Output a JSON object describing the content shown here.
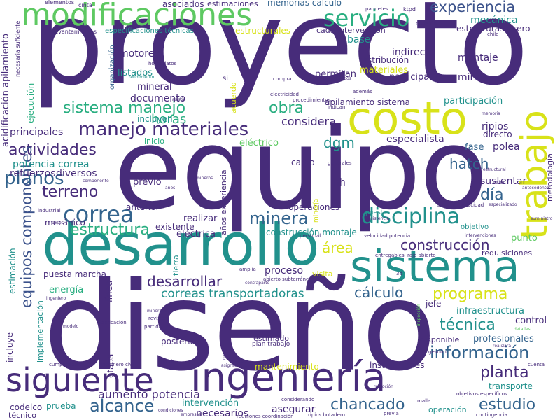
{
  "colors": {
    "dark_purple": "#472c7a",
    "indigo": "#3b528b",
    "blue": "#33638d",
    "teal": "#21918c",
    "green": "#28ae80",
    "light_green": "#5ec962",
    "lime": "#addc30",
    "yellow": "#d8e219"
  },
  "words": {
    "proyecto": "proyecto",
    "equipo": "equipo",
    "diseno": "diseño",
    "desarrollo": "desarrollo",
    "sistema_big": "sistema",
    "costo": "costo",
    "trabajo": "trabajo",
    "modificaciones": "modificaciones",
    "ingenieria": "ingeniería",
    "siguiente": "siguiente",
    "servicio": "servicio",
    "experiencia": "experiencia",
    "mecanica": "mecánica",
    "estructuras_acero": "estructuras acero",
    "sistema_manejo": "sistema manejo",
    "manejo_materiales": "manejo materiales",
    "actividades": "actividades",
    "dgm": "dgm",
    "hatch": "hatch",
    "planos": "planos",
    "terreno": "terreno",
    "correa": "correa",
    "minera": "minera",
    "disciplina": "disciplina",
    "dia": "día",
    "estructura": "estructura",
    "construccion": "construcción",
    "area": "área",
    "equipos_componentes": "equipos componentes",
    "desarrollar": "desarrollar",
    "calculo": "cálculo",
    "correas_transportadoras": "correas transportadoras",
    "programa": "programa",
    "tecnica": "técnica",
    "informacion": "información",
    "planta": "planta",
    "chancado": "chancado",
    "estudio": "estudio",
    "alcance": "alcance",
    "aumento_potencia": "aumento potencia",
    "obra": "obra",
    "horas": "horas",
    "considera": "considera",
    "principales": "principales",
    "potencia_correa": "potencia correa",
    "refuerzos": "refuerzos",
    "diversos": "diversos",
    "especialista": "especialista",
    "fase": "fase",
    "polea": "polea",
    "ripios": "ripios",
    "directo": "directo",
    "participacion": "participación",
    "apilamiento_sistema": "apilamiento sistema",
    "incluyen": "incluyen",
    "documento": "documento",
    "listados": "listados",
    "mineral": "mineral",
    "motores": "motores",
    "indirecto": "indirecto",
    "montaje": "montaje",
    "distribucion": "distribución",
    "materiales": "materiales",
    "permitan": "permitan",
    "participado": "participado",
    "mina": "mina",
    "base": "base",
    "cada_intervencion": "cada intervención",
    "estructurales": "estructurales",
    "especificaciones_tecnicas": "especificaciones técnicas",
    "asociados": "asociados",
    "estimaciones": "estimaciones",
    "memorias_calculo": "memorias cálculo",
    "electrico": "eléctrico",
    "inicio": "inicio",
    "cargo": "cargo",
    "hh": "hh",
    "sustentar": "sustentar",
    "previo": "previo",
    "anterior": "anterior",
    "existente": "existente",
    "mecanico": "mecánico",
    "realizar": "realizar",
    "operaciones": "operaciones",
    "construccion_montaje": "construcción montaje",
    "electrica": "eléctrica",
    "proceso": "proceso",
    "visita": "visita",
    "puesta_marcha": "puesta marcha",
    "energia": "energía",
    "requisiciones": "requisiciones",
    "punto": "punto",
    "objetivo": "objetivo",
    "jefe": "jefe",
    "infraestructura": "infraestructura",
    "control": "control",
    "profesionales": "profesionales",
    "disponible": "disponible",
    "estimado": "estimado",
    "posterior": "posterior",
    "plan_trabajo": "plan trabajo",
    "cliente": "cliente",
    "mantenimiento": "mantenimiento",
    "instalaciones": "instalaciones",
    "transporte": "transporte",
    "intervencion": "intervención",
    "asegurar": "asegurar",
    "operacion": "operación",
    "necesarios": "necesarios",
    "prueba": "prueba",
    "codelco": "codelco",
    "tecnico": "técnico",
    "incluye": "incluye",
    "implementacion": "implementación",
    "etapa": "etapa",
    "estimacion": "estimación",
    "linea": "línea",
    "ejecucion": "ejecución",
    "acidificacion_apilamiento": "acidificación apilamiento",
    "organizacion": "organización",
    "anos_experiencia": "años experiencia",
    "acuerdo": "acuerdo",
    "metodologia": "metodología",
    "tierra": "tierra",
    "elementos": "elementos",
    "cinta": "cinta",
    "levantamientos": "levantamientos",
    "paquetes": "paquetes",
    "ktpd": "ktpd",
    "division": "división",
    "chile": "chile",
    "hojas_datos": "hojas datos",
    "rendimiento": "rendimiento",
    "si": "si",
    "compra": "compra",
    "considerados": "considerados",
    "ademas": "además",
    "indican": "indican",
    "electricidad": "electricidad",
    "procedimientos": "procedimientos",
    "asistir": "asistir",
    "memoria": "memoria",
    "generales": "generales",
    "componente": "componente",
    "anos": "años",
    "mineros": "mineros",
    "estructural": "estructural",
    "valor": "valor",
    "antecedentes": "antecedentes",
    "industrial": "industrial",
    "casos": "casos",
    "aumento_velocidad": "aumento velocidad",
    "especializado": "especializado",
    "suministro": "suministro",
    "personal": "personal",
    "velocidad_potencia": "velocidad potencia",
    "intervenciones": "intervenciones",
    "entregables": "entregables",
    "rajo_abierto": "rajo abierto",
    "amplia": "amplia",
    "abierto_subterranea": "abierto subterránea",
    "contraparte": "contraparte",
    "reuniones_coordinacion": "reuniones coordinación",
    "3d": "3d",
    "inspeccion": "inspección",
    "ingeniero": "ingeniero",
    "mineral_small": "minerales",
    "revision": "revisión",
    "partida": "partida",
    "fabricacion": "fabricación",
    "modelo": "modelo",
    "detalles": "detalles",
    "gestion": "gestión",
    "realizara": "realizará",
    "cuenta": "cuenta",
    "cumplimiento": "cumplimiento",
    "ingeniero_civil": "ingeniero civil",
    "partir": "partir",
    "asignar": "asignar",
    "manera": "manera",
    "gasto": "gasto",
    "remocion": "remoción",
    "malla": "malla",
    "objetivos_especificos": "objetivos específicos",
    "considerando": "considerando",
    "condiciones": "condiciones",
    "empresas": "empresas",
    "ripios_botadero": "ripios botadero",
    "previa": "previa",
    "contingencia": "contingencia",
    "necesaria_suficiente": "necesaria suficiente",
    "asistencia": "asistencia",
    "puesta": "puesta",
    "mineria": "minería",
    "ademas2": "adicional"
  }
}
